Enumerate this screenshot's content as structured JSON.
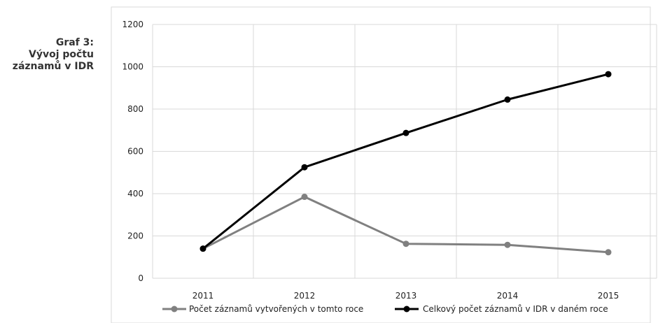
{
  "caption": {
    "line1": "Graf 3:",
    "line2": "Vývoj počtu",
    "line3": "záznamů v IDR"
  },
  "chart_data": {
    "type": "line",
    "categories": [
      "2011",
      "2012",
      "2013",
      "2014",
      "2015"
    ],
    "ylim": [
      0,
      1200
    ],
    "yticks": [
      0,
      200,
      400,
      600,
      800,
      1000,
      1200
    ],
    "grid": true,
    "legend": "bottom",
    "series": [
      {
        "name": "Počet záznamů vytvořených v tomto roce",
        "values": [
          140,
          385,
          163,
          158,
          123
        ],
        "color": "#808080"
      },
      {
        "name": "Celkový počet záznamů v IDR v daném roce",
        "values": [
          140,
          525,
          687,
          845,
          965
        ],
        "color": "#000000"
      }
    ]
  }
}
